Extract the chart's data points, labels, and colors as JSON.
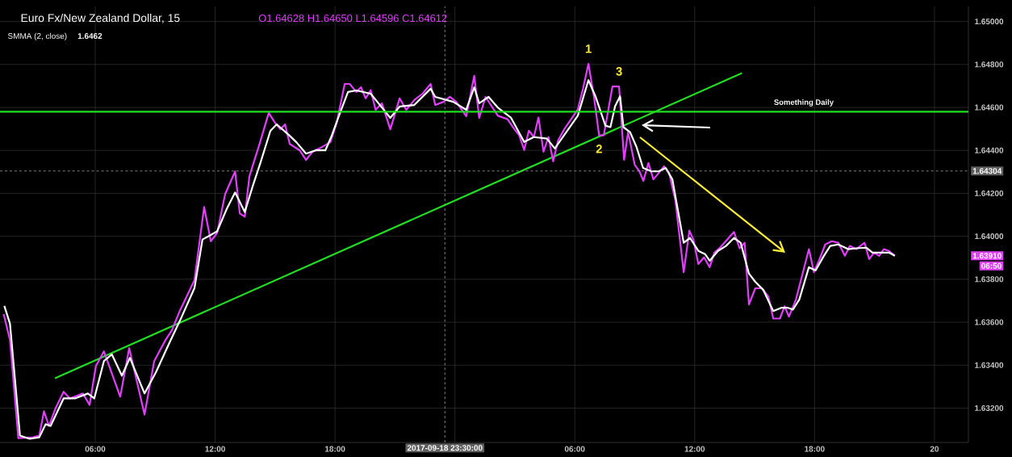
{
  "chart_data": {
    "type": "line",
    "title": "Euro Fx/New Zealand Dollar, 15",
    "subtitle": "O1.64628 H1.64650 L1.64596 C1.64612",
    "xlim": [
      "2017-09-18T01:14",
      "2017-09-20T01:42"
    ],
    "ylim": [
      1.6304,
      1.6507
    ],
    "xticks": [
      {
        "value": "2017-09-18T06:00",
        "label": "06:00"
      },
      {
        "value": "2017-09-18T12:00",
        "label": "12:00"
      },
      {
        "value": "2017-09-18T18:00",
        "label": "18:00"
      },
      {
        "value": "2017-09-19T00:00",
        "label": null
      },
      {
        "value": "2017-09-19T06:00",
        "label": "06:00"
      },
      {
        "value": "2017-09-19T12:00",
        "label": "12:00"
      },
      {
        "value": "2017-09-19T18:00",
        "label": "18:00"
      },
      {
        "value": "2017-09-20T00:00",
        "label": "20"
      }
    ],
    "yticks": [
      {
        "value": 1.632,
        "label": "1.63200"
      },
      {
        "value": 1.634,
        "label": "1.63400"
      },
      {
        "value": 1.636,
        "label": "1.63600"
      },
      {
        "value": 1.638,
        "label": "1.63800"
      },
      {
        "value": 1.64,
        "label": "1.64000"
      },
      {
        "value": 1.642,
        "label": "1.64200"
      },
      {
        "value": 1.644,
        "label": "1.64400"
      },
      {
        "value": 1.646,
        "label": "1.64600"
      },
      {
        "value": 1.648,
        "label": "1.64800"
      },
      {
        "value": 1.65,
        "label": "1.65000"
      }
    ],
    "grid": true,
    "series": [
      {
        "color": "#22dd22",
        "x": [
          "2017-09-18T03:59",
          "2017-09-19T14:22"
        ],
        "values": [
          1.63339,
          1.6476
        ]
      },
      {
        "color": "#e040fb",
        "x": [
          "2017-09-18T01:25",
          "2017-09-18T01:44",
          "2017-09-18T02:09",
          "2017-09-18T02:53",
          "2017-09-18T03:12",
          "2017-09-18T03:26",
          "2017-09-18T03:41",
          "2017-09-18T04:01",
          "2017-09-18T04:25",
          "2017-09-18T04:44",
          "2017-09-18T05:23",
          "2017-09-18T05:43",
          "2017-09-18T06:02",
          "2017-09-18T06:26",
          "2017-09-18T07:15",
          "2017-09-18T07:42",
          "2017-09-18T08:28",
          "2017-09-18T08:57",
          "2017-09-18T09:31",
          "2017-09-18T09:50",
          "2017-09-18T10:14",
          "2017-09-18T10:58",
          "2017-09-18T11:27",
          "2017-09-18T11:47",
          "2017-09-18T12:06",
          "2017-09-18T12:30",
          "2017-09-18T13:00",
          "2017-09-18T13:14",
          "2017-09-18T13:29",
          "2017-09-18T13:43",
          "2017-09-18T14:12",
          "2017-09-18T14:41",
          "2017-09-18T15:00",
          "2017-09-18T15:16",
          "2017-09-18T15:30",
          "2017-09-18T15:44",
          "2017-09-18T16:14",
          "2017-09-18T16:33",
          "2017-09-18T16:52",
          "2017-09-18T17:12",
          "2017-09-18T17:46",
          "2017-09-18T18:05",
          "2017-09-18T18:29",
          "2017-09-18T18:44",
          "2017-09-18T19:04",
          "2017-09-18T19:18",
          "2017-09-18T19:32",
          "2017-09-18T19:47",
          "2017-09-18T20:02",
          "2017-09-18T20:21",
          "2017-09-18T20:46",
          "2017-09-18T21:14",
          "2017-09-18T21:34",
          "2017-09-18T21:58",
          "2017-09-18T22:23",
          "2017-09-18T22:47",
          "2017-09-18T23:01",
          "2017-09-18T23:26",
          "2017-09-18T23:45",
          "2017-09-19T00:04",
          "2017-09-19T00:34",
          "2017-09-19T00:58",
          "2017-09-19T01:13",
          "2017-09-19T01:32",
          "2017-09-19T02:09",
          "2017-09-19T02:38",
          "2017-09-19T02:58",
          "2017-09-19T03:13",
          "2017-09-19T03:28",
          "2017-09-19T03:42",
          "2017-09-19T03:57",
          "2017-09-19T04:11",
          "2017-09-19T04:26",
          "2017-09-19T04:41",
          "2017-09-19T04:55",
          "2017-09-19T05:10",
          "2017-09-19T05:29",
          "2017-09-19T05:49",
          "2017-09-19T06:09",
          "2017-09-19T06:25",
          "2017-09-19T06:41",
          "2017-09-19T06:58",
          "2017-09-19T07:13",
          "2017-09-19T07:27",
          "2017-09-19T07:53",
          "2017-09-19T08:13",
          "2017-09-19T08:28",
          "2017-09-19T08:40",
          "2017-09-19T09:00",
          "2017-09-19T09:14",
          "2017-09-19T09:26",
          "2017-09-19T09:41",
          "2017-09-19T09:56",
          "2017-09-19T10:13",
          "2017-09-19T10:28",
          "2017-09-19T10:43",
          "2017-09-19T11:02",
          "2017-09-19T11:27",
          "2017-09-19T11:44",
          "2017-09-19T11:56",
          "2017-09-19T12:11",
          "2017-09-19T12:28",
          "2017-09-19T12:45",
          "2017-09-19T12:59",
          "2017-09-19T13:16",
          "2017-09-19T13:58",
          "2017-09-19T14:15",
          "2017-09-19T14:30",
          "2017-09-19T14:43",
          "2017-09-19T15:02",
          "2017-09-19T15:22",
          "2017-09-19T15:41",
          "2017-09-19T15:56",
          "2017-09-19T16:16",
          "2017-09-19T16:30",
          "2017-09-19T16:43",
          "2017-09-19T17:04",
          "2017-09-19T17:24",
          "2017-09-19T17:43",
          "2017-09-19T17:58",
          "2017-09-19T18:13",
          "2017-09-19T18:32",
          "2017-09-19T18:52",
          "2017-09-19T19:11",
          "2017-09-19T19:31",
          "2017-09-19T19:46",
          "2017-09-19T20:05",
          "2017-09-19T20:30",
          "2017-09-19T20:44",
          "2017-09-19T20:59",
          "2017-09-19T21:14",
          "2017-09-19T21:28",
          "2017-09-19T21:43",
          "2017-09-19T22:01"
        ],
        "values": [
          1.63638,
          1.63517,
          1.6306,
          1.63064,
          1.63072,
          1.63185,
          1.63117,
          1.632,
          1.63276,
          1.63245,
          1.63268,
          1.63215,
          1.63396,
          1.63464,
          1.63253,
          1.63479,
          1.6317,
          1.63419,
          1.63517,
          1.63562,
          1.63653,
          1.63796,
          1.64136,
          1.63977,
          1.64015,
          1.64196,
          1.64302,
          1.64106,
          1.64091,
          1.6428,
          1.64423,
          1.64574,
          1.64528,
          1.64498,
          1.64521,
          1.6443,
          1.644,
          1.64355,
          1.64393,
          1.64408,
          1.64438,
          1.64528,
          1.64709,
          1.64709,
          1.64672,
          1.64694,
          1.64642,
          1.6468,
          1.64589,
          1.64619,
          1.64498,
          1.64642,
          1.64589,
          1.64634,
          1.64664,
          1.64709,
          1.64611,
          1.64626,
          1.64649,
          1.64626,
          1.64559,
          1.64747,
          1.64551,
          1.64649,
          1.64561,
          1.64545,
          1.645,
          1.6447,
          1.64402,
          1.64492,
          1.64462,
          1.64553,
          1.64394,
          1.64462,
          1.64349,
          1.64447,
          1.645,
          1.64545,
          1.64591,
          1.64689,
          1.64803,
          1.64644,
          1.6447,
          1.6447,
          1.64697,
          1.64697,
          1.64356,
          1.64485,
          1.64333,
          1.64303,
          1.64258,
          1.64341,
          1.64265,
          1.64296,
          1.64326,
          1.64296,
          1.64167,
          1.63833,
          1.64026,
          1.63985,
          1.63871,
          1.63902,
          1.63856,
          1.63924,
          1.63947,
          1.6402,
          1.63944,
          1.6397,
          1.63682,
          1.63758,
          1.63758,
          1.6372,
          1.63617,
          1.63617,
          1.63674,
          1.63626,
          1.63705,
          1.63826,
          1.6394,
          1.63833,
          1.63886,
          1.63962,
          1.63977,
          1.6397,
          1.63909,
          1.63955,
          1.6394,
          1.6397,
          1.63894,
          1.63924,
          1.63909,
          1.6394,
          1.63932,
          1.63909
        ]
      },
      {
        "name": "SMMA (2, close)",
        "color": "#ffffff",
        "x": [
          "2017-09-18T01:27",
          "2017-09-18T01:44",
          "2017-09-18T02:14",
          "2017-09-18T02:43",
          "2017-09-18T03:12",
          "2017-09-18T03:31",
          "2017-09-18T03:46",
          "2017-09-18T04:25",
          "2017-09-18T04:59",
          "2017-09-18T05:38",
          "2017-09-18T05:57",
          "2017-09-18T06:26",
          "2017-09-18T06:50",
          "2017-09-18T07:20",
          "2017-09-18T07:44",
          "2017-09-18T08:28",
          "2017-09-18T09:02",
          "2017-09-18T09:40",
          "2017-09-18T10:19",
          "2017-09-18T10:58",
          "2017-09-18T11:22",
          "2017-09-18T12:06",
          "2017-09-18T12:35",
          "2017-09-18T13:00",
          "2017-09-18T13:29",
          "2017-09-18T13:53",
          "2017-09-18T14:17",
          "2017-09-18T14:46",
          "2017-09-18T15:05",
          "2017-09-18T15:44",
          "2017-09-18T16:04",
          "2017-09-18T16:33",
          "2017-09-18T17:02",
          "2017-09-18T17:31",
          "2017-09-18T17:50",
          "2017-09-18T18:15",
          "2017-09-18T18:39",
          "2017-09-18T19:04",
          "2017-09-18T19:47",
          "2017-09-18T20:07",
          "2017-09-18T20:46",
          "2017-09-18T21:14",
          "2017-09-18T21:58",
          "2017-09-18T22:47",
          "2017-09-18T23:01",
          "2017-09-18T23:55",
          "2017-09-19T00:34",
          "2017-09-19T00:58",
          "2017-09-19T01:13",
          "2017-09-19T01:41",
          "2017-09-19T02:09",
          "2017-09-19T02:48",
          "2017-09-19T03:28",
          "2017-09-19T03:57",
          "2017-09-19T04:36",
          "2017-09-19T05:00",
          "2017-09-19T06:09",
          "2017-09-19T06:41",
          "2017-09-19T07:02",
          "2017-09-19T07:32",
          "2017-09-19T07:47",
          "2017-09-19T08:01",
          "2017-09-19T08:16",
          "2017-09-19T08:26",
          "2017-09-19T08:46",
          "2017-09-19T09:05",
          "2017-09-19T09:25",
          "2017-09-19T09:49",
          "2017-09-19T10:13",
          "2017-09-19T10:33",
          "2017-09-19T10:53",
          "2017-09-19T11:27",
          "2017-09-19T11:46",
          "2017-09-19T12:11",
          "2017-09-19T12:31",
          "2017-09-19T12:45",
          "2017-09-19T13:10",
          "2017-09-19T13:34",
          "2017-09-19T13:58",
          "2017-09-19T14:18",
          "2017-09-19T14:43",
          "2017-09-19T15:02",
          "2017-09-19T15:26",
          "2017-09-19T15:56",
          "2017-09-19T16:20",
          "2017-09-19T16:40",
          "2017-09-19T16:55",
          "2017-09-19T17:14",
          "2017-09-19T17:43",
          "2017-09-19T18:03",
          "2017-09-19T18:28",
          "2017-09-19T18:47",
          "2017-09-19T19:11",
          "2017-09-19T19:41",
          "2017-09-19T20:05",
          "2017-09-19T20:35",
          "2017-09-19T20:54",
          "2017-09-19T21:23",
          "2017-09-19T21:43",
          "2017-09-19T22:01"
        ],
        "values": [
          1.63676,
          1.63593,
          1.63072,
          1.63057,
          1.63064,
          1.63125,
          1.63117,
          1.63245,
          1.63245,
          1.63268,
          1.63245,
          1.63419,
          1.6345,
          1.63351,
          1.63434,
          1.63268,
          1.63366,
          1.63495,
          1.63623,
          1.63759,
          1.63985,
          1.64023,
          1.64128,
          1.64204,
          1.64113,
          1.64234,
          1.64347,
          1.64491,
          1.64521,
          1.64468,
          1.64438,
          1.64385,
          1.644,
          1.644,
          1.64468,
          1.64574,
          1.64672,
          1.64679,
          1.64664,
          1.64626,
          1.64551,
          1.64604,
          1.64611,
          1.64687,
          1.64649,
          1.64626,
          1.64589,
          1.64694,
          1.64619,
          1.64649,
          1.64599,
          1.64553,
          1.64439,
          1.64462,
          1.64455,
          1.64409,
          1.64561,
          1.64727,
          1.64652,
          1.64515,
          1.64508,
          1.64606,
          1.64652,
          1.64508,
          1.64485,
          1.64417,
          1.64318,
          1.64303,
          1.64303,
          1.64318,
          1.64265,
          1.6397,
          1.63992,
          1.63932,
          1.63917,
          1.63886,
          1.63932,
          1.63955,
          1.63992,
          1.6397,
          1.63826,
          1.63788,
          1.6375,
          1.63652,
          1.63667,
          1.63667,
          1.63659,
          1.63705,
          1.63856,
          1.63841,
          1.63909,
          1.63955,
          1.63962,
          1.6394,
          1.63944,
          1.63947,
          1.63924,
          1.63924,
          1.63924,
          1.63909
        ]
      }
    ],
    "ref_lines": [
      {
        "axis": "y",
        "value": 1.6458,
        "label": "Something Daily",
        "color": "#22dd22",
        "line_style": "solid"
      },
      {
        "axis": "y",
        "value": 1.64304,
        "label": "1.64304",
        "color": "#9e9e9e",
        "line_style": "dashed"
      },
      {
        "axis": "x",
        "value": "2017-09-18T23:30",
        "label": "2017-09-18 23:30:00",
        "color": "#9e9e9e",
        "line_style": "dashed"
      }
    ],
    "annotations": [
      "1.6462",
      "1.63910",
      "06:50",
      {
        "text": "1",
        "x": "2017-09-19T06:41",
        "y": 1.64803
      },
      {
        "text": "3",
        "x": "2017-09-19T08:13",
        "y": 1.64697
      },
      {
        "text": "2",
        "x": "2017-09-19T07:13",
        "y": 1.6447
      }
    ]
  }
}
